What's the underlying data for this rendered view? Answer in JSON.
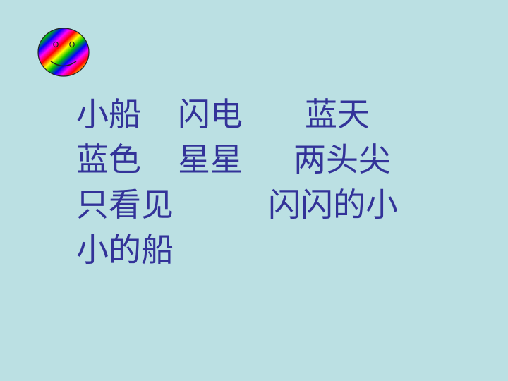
{
  "slide": {
    "icon": "smiley-face-icon",
    "text_color": "#333399",
    "background": "#BBE0E3",
    "lines": [
      [
        "小船",
        "闪电",
        "蓝天"
      ],
      [
        "蓝色",
        "星星",
        "两头尖"
      ],
      [
        "只看见",
        "闪闪的小"
      ],
      [
        "小的船"
      ]
    ]
  }
}
